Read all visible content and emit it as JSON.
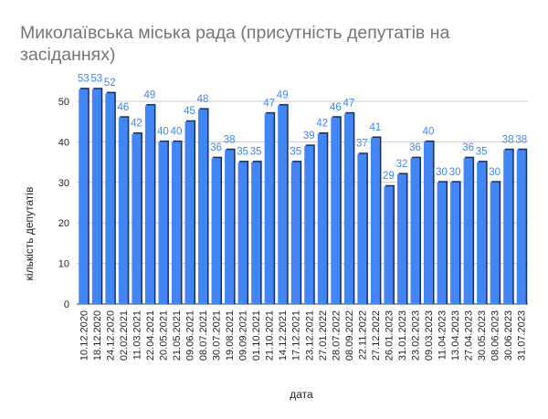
{
  "chart_data": {
    "type": "bar",
    "title": "Миколаївська міська рада (присутність депутатів на засіданнях)",
    "title_lines": [
      "Миколаївська міська рада (присутність депутатів на",
      "засіданнях)"
    ],
    "xlabel": "дата",
    "ylabel": "кількість депутатів",
    "ylim": [
      0,
      50
    ],
    "yticks": [
      0,
      10,
      20,
      30,
      40,
      50
    ],
    "grid": true,
    "bar_color": "#4285f4",
    "label_color": "#4285f4",
    "categories": [
      "10.12.2020",
      "18.12.2020",
      "24.12.2020",
      "02.02.2021",
      "11.03.2021",
      "22.04.2021",
      "20.05.2021",
      "21.05.2021",
      "09.06.2021",
      "08.07.2021",
      "30.07.2021",
      "19.08.2021",
      "09.09.2021",
      "01.10.2021",
      "21.10.2021",
      "14.12.2021",
      "17.12.2021",
      "23.12.2021",
      "27.01.2022",
      "28.07.2022",
      "08.09.2022",
      "22.11.2022",
      "27.12.2022",
      "26.01.2023",
      "31.01.2023",
      "23.02.2023",
      "09.03.2023",
      "11.04.2023",
      "13.04.2023",
      "27.04.2023",
      "30.05.2023",
      "08.06.2023",
      "30.06.2023",
      "31.07.2023"
    ],
    "values": [
      53,
      53,
      52,
      46,
      42,
      49,
      40,
      40,
      45,
      48,
      36,
      38,
      35,
      35,
      47,
      49,
      35,
      39,
      42,
      46,
      47,
      37,
      41,
      29,
      32,
      36,
      40,
      30,
      30,
      36,
      35,
      30,
      38,
      38
    ]
  }
}
